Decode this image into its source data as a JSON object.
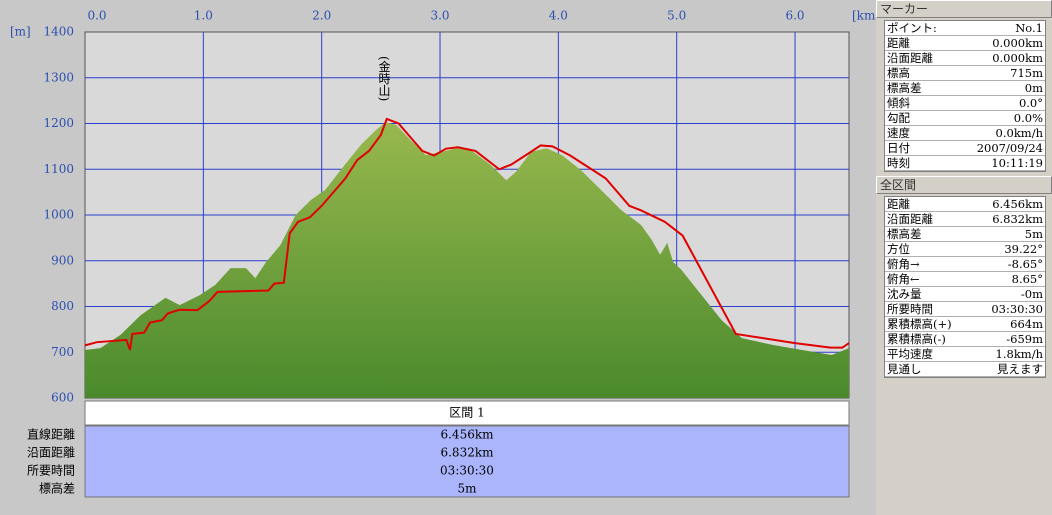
{
  "chart_data": {
    "type": "area",
    "x_label": "[km]",
    "y_label": "[m]",
    "annotation": "(金時山)",
    "xlim": [
      0,
      6.456
    ],
    "ylim": [
      600,
      1400
    ],
    "xticks": [
      {
        "value": 0,
        "label": "0.0"
      },
      {
        "value": 1,
        "label": "1.0"
      },
      {
        "value": 2,
        "label": "2.0"
      },
      {
        "value": 3,
        "label": "3.0"
      },
      {
        "value": 4,
        "label": "4.0"
      },
      {
        "value": 5,
        "label": "5.0"
      },
      {
        "value": 6,
        "label": "6.0"
      }
    ],
    "yticks": [
      600,
      700,
      800,
      900,
      1000,
      1100,
      1200,
      1300,
      1400
    ],
    "grid": true,
    "series": [
      {
        "color": "#6f9a3a",
        "x": [
          0,
          0.13,
          0.3,
          0.47,
          0.68,
          0.8,
          0.97,
          1.1,
          1.23,
          1.36,
          1.44,
          1.53,
          1.65,
          1.78,
          1.91,
          2.03,
          2.16,
          2.33,
          2.46,
          2.54,
          2.63,
          2.75,
          2.88,
          3.01,
          3.14,
          3.26,
          3.43,
          3.56,
          3.64,
          3.77,
          3.9,
          4.03,
          4.19,
          4.36,
          4.53,
          4.7,
          4.79,
          4.86,
          4.92,
          4.97,
          5.04,
          5.21,
          5.38,
          5.55,
          5.81,
          6.06,
          6.31,
          6.456
        ],
        "values": [
          705,
          709,
          738,
          781,
          819,
          803,
          825,
          847,
          884,
          884,
          862,
          897,
          934,
          1000,
          1033,
          1055,
          1098,
          1153,
          1186,
          1203,
          1197,
          1164,
          1131,
          1138,
          1146,
          1142,
          1109,
          1076,
          1094,
          1138,
          1146,
          1131,
          1098,
          1055,
          1011,
          978,
          945,
          913,
          939,
          897,
          880,
          825,
          770,
          731,
          716,
          705,
          694,
          709
        ]
      },
      {
        "color": "#e00000",
        "x": [
          0,
          0.1,
          0.35,
          0.38,
          0.4,
          0.5,
          0.55,
          0.65,
          0.7,
          0.8,
          0.95,
          1.05,
          1.12,
          1.55,
          1.6,
          1.68,
          1.73,
          1.8,
          1.9,
          2.0,
          2.1,
          2.2,
          2.3,
          2.4,
          2.5,
          2.55,
          2.65,
          2.75,
          2.85,
          2.95,
          3.05,
          3.15,
          3.3,
          3.5,
          3.6,
          3.75,
          3.85,
          3.95,
          4.1,
          4.4,
          4.6,
          4.7,
          4.9,
          5.05,
          5.5,
          6.0,
          6.3,
          6.4,
          6.456
        ],
        "values": [
          715,
          722,
          727,
          705,
          740,
          743,
          765,
          770,
          785,
          793,
          792,
          812,
          832,
          835,
          850,
          852,
          960,
          985,
          995,
          1020,
          1050,
          1080,
          1120,
          1140,
          1175,
          1210,
          1200,
          1170,
          1140,
          1130,
          1145,
          1148,
          1140,
          1100,
          1110,
          1135,
          1152,
          1150,
          1130,
          1080,
          1020,
          1010,
          985,
          955,
          740,
          720,
          710,
          710,
          720
        ]
      }
    ]
  },
  "summary": {
    "header": "区間 1",
    "rows": [
      [
        "直線距離",
        "6.456km"
      ],
      [
        "沿面距離",
        "6.832km"
      ],
      [
        "所要時間",
        "03:30:30"
      ],
      [
        "標高差",
        "5m"
      ]
    ]
  },
  "marker_panel": {
    "title": "マーカー",
    "rows": [
      [
        "ポイント:",
        "No.1"
      ],
      [
        "距離",
        "0.000km"
      ],
      [
        "沿面距離",
        "0.000km"
      ],
      [
        "標高",
        "715m"
      ],
      [
        "標高差",
        "0m"
      ],
      [
        "傾斜",
        "0.0°"
      ],
      [
        "勾配",
        "0.0%"
      ],
      [
        "速度",
        "0.0km/h"
      ],
      [
        "日付",
        "2007/09/24"
      ],
      [
        "時刻",
        "10:11:19"
      ]
    ]
  },
  "total_panel": {
    "title": "全区間",
    "rows": [
      [
        "距離",
        "6.456km"
      ],
      [
        "沿面距離",
        "6.832km"
      ],
      [
        "標高差",
        "5m"
      ],
      [
        "方位",
        "39.22°"
      ],
      [
        "俯角→",
        "-8.65°"
      ],
      [
        "俯角←",
        "8.65°"
      ],
      [
        "沈み量",
        "-0m"
      ],
      [
        "所要時間",
        "03:30:30"
      ],
      [
        "累積標高(+)",
        "664m"
      ],
      [
        "累積標高(-)",
        "-659m"
      ],
      [
        "平均速度",
        "1.8km/h"
      ],
      [
        "見通し",
        "見えます"
      ]
    ]
  }
}
